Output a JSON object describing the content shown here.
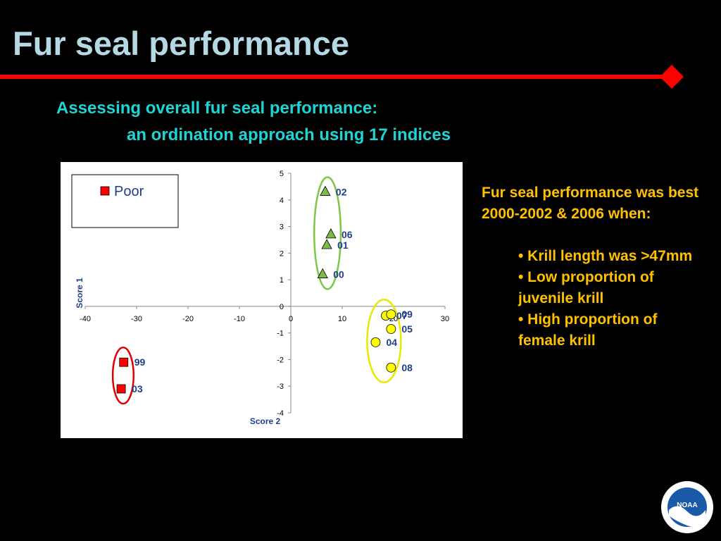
{
  "slide": {
    "title": "Fur seal performance",
    "subtitle_line1": "Assessing overall fur seal performance:",
    "subtitle_line2": "an ordination approach using 17 indices",
    "side_text": "Fur seal performance was best  2000-2002 & 2006 when:",
    "bullets": [
      "•  Krill length was >47mm",
      "•  Low proportion of juvenile krill",
      "•  High proportion of female krill"
    ],
    "logo_text": "NOAA",
    "colors": {
      "title": "#b4d8e4",
      "subtitle": "#1ed4d4",
      "side_text": "#ffc000",
      "rule": "#ff0000"
    }
  },
  "chart_data": {
    "type": "scatter",
    "xlabel": "Score 2",
    "ylabel": "Score 1",
    "xlim": [
      -40,
      30
    ],
    "ylim": [
      -4,
      5
    ],
    "xticks": [
      -40,
      -30,
      -20,
      -10,
      0,
      10,
      20,
      30
    ],
    "yticks": [
      -4,
      -3,
      -2,
      -1,
      0,
      1,
      2,
      3,
      4,
      5
    ],
    "grid": false,
    "legend": {
      "placement": "top-left",
      "entries": [
        "Poor"
      ]
    },
    "series": [
      {
        "name": "Poor",
        "marker": "square",
        "color": "#ff0000",
        "ellipse_color": "#e00000",
        "points": [
          {
            "label": "99",
            "x": -32.5,
            "y": -2.1
          },
          {
            "label": "03",
            "x": -33,
            "y": -3.1
          }
        ]
      },
      {
        "marker": "triangle",
        "color": "#7cbc45",
        "ellipse_color": "#7cc845",
        "points": [
          {
            "label": "02",
            "x": 6.7,
            "y": 4.3
          },
          {
            "label": "06",
            "x": 7.8,
            "y": 2.7
          },
          {
            "label": "01",
            "x": 7,
            "y": 2.3
          },
          {
            "label": "00",
            "x": 6.2,
            "y": 1.2
          }
        ]
      },
      {
        "marker": "circle",
        "color": "#ffff00",
        "ellipse_color": "#e8e800",
        "points": [
          {
            "label": "07",
            "x": 18.5,
            "y": -0.35
          },
          {
            "label": "09",
            "x": 19.5,
            "y": -0.3
          },
          {
            "label": "05",
            "x": 19.5,
            "y": -0.85
          },
          {
            "label": "04",
            "x": 16.5,
            "y": -1.35
          },
          {
            "label": "08",
            "x": 19.5,
            "y": -2.3
          }
        ]
      }
    ]
  }
}
